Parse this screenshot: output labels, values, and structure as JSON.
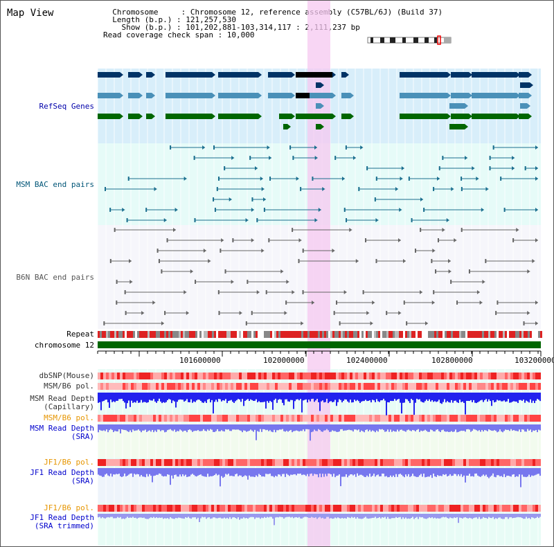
{
  "header": {
    "title": "Map View",
    "info_lines": [
      "  Chromosome     : Chromosome 12, reference assembly (C57BL/6J) (Build 37)",
      "  Length (b.p.) : 121,257,530",
      "    Show (b.p.) : 101,202,881-103,314,117 : 2,111,237 bp",
      "Read coverage check span : 10,000"
    ]
  },
  "tracks": {
    "refseq": "RefSeq Genes",
    "msm_bac": "MSM BAC end pairs",
    "b6n_bac": "B6N BAC end pairs",
    "repeat": "Repeat",
    "chromosome": "chromosome 12",
    "dbsnp": "dbSNP(Mouse)",
    "msm_b6_pol_1": "MSM/B6 pol.",
    "msm_read_depth_cap_1": "MSM Read Depth",
    "msm_read_depth_cap_2": "(Capillary)",
    "msm_b6_pol_2": "MSM/B6 pol.",
    "msm_read_depth_sra_1": "MSM Read Depth",
    "msm_read_depth_sra_2": "(SRA)",
    "jf1_b6_pol_1": "JF1/B6 pol.",
    "jf1_read_depth_sra_1": "JF1 Read Depth",
    "jf1_read_depth_sra_2": "(SRA)",
    "jf1_b6_pol_2": "JF1/B6 pol.",
    "jf1_read_depth_trim_1": "JF1 Read Depth",
    "jf1_read_depth_trim_2": "(SRA trimmed)"
  },
  "axis": {
    "ticks": [
      "101600000",
      "102000000",
      "102400000",
      "102800000",
      "103200000"
    ]
  },
  "colors": {
    "refseq_label": "#0000aa",
    "msm_label": "#005577",
    "b6n_label": "#555555",
    "orange_label": "#e69500",
    "blue_label": "#0000cc",
    "highlight": "#f5c8f0",
    "gene_dark": "#003366",
    "gene_mid": "#4a90b8",
    "gene_green": "#006600",
    "chrom_green": "#006600",
    "depth_blue": "#2222ee",
    "depth_light": "#7777ee"
  }
}
